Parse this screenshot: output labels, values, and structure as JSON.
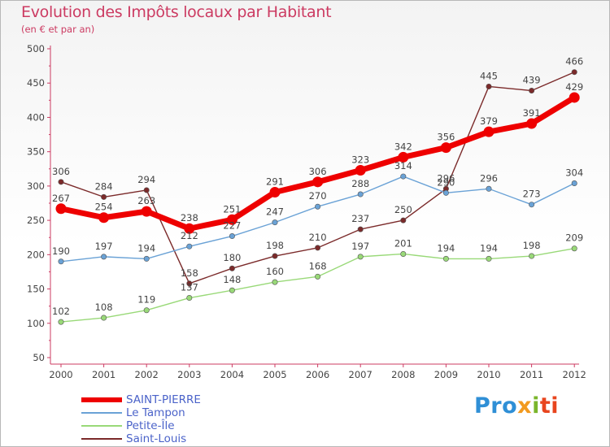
{
  "chart_data": {
    "type": "line",
    "title": "Evolution des Impôts locaux par Habitant",
    "subtitle": "(en € et par an)",
    "xlabel": "",
    "ylabel": "",
    "categories": [
      "2000",
      "2001",
      "2002",
      "2003",
      "2004",
      "2005",
      "2006",
      "2007",
      "2008",
      "2009",
      "2010",
      "2011",
      "2012"
    ],
    "ylim": [
      50,
      500
    ],
    "yticks": [
      50,
      100,
      150,
      200,
      250,
      300,
      350,
      400,
      450,
      500
    ],
    "grid": false,
    "legend_position": "bottom-left",
    "series": [
      {
        "name": "SAINT-PIERRE",
        "color": "#ee0000",
        "values": [
          267,
          254,
          263,
          238,
          251,
          291,
          306,
          323,
          342,
          356,
          379,
          391,
          429
        ]
      },
      {
        "name": "Le Tampon",
        "color": "#6aa2d6",
        "values": [
          190,
          197,
          194,
          212,
          227,
          247,
          270,
          288,
          314,
          290,
          296,
          273,
          304
        ]
      },
      {
        "name": "Petite-Île",
        "color": "#99d978",
        "values": [
          102,
          108,
          119,
          137,
          148,
          160,
          168,
          197,
          201,
          194,
          194,
          198,
          209
        ]
      },
      {
        "name": "Saint-Louis",
        "color": "#7b2a2a",
        "values": [
          306,
          284,
          294,
          158,
          180,
          198,
          210,
          237,
          250,
          296,
          445,
          439,
          466
        ]
      }
    ]
  },
  "brand": {
    "p1": "Pro",
    "p2": "x",
    "p3": "i",
    "p4": "ti"
  }
}
